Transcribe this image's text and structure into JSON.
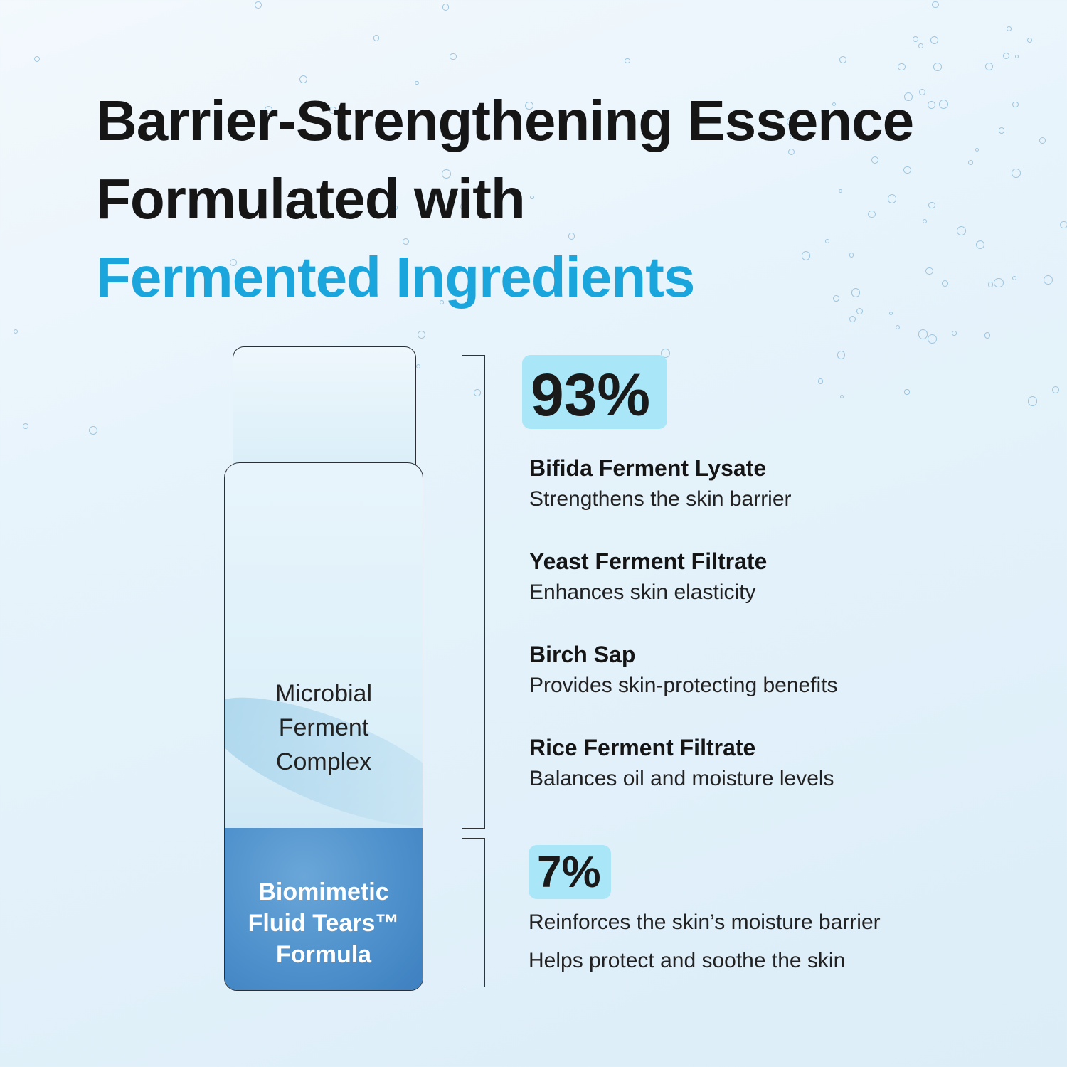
{
  "headline": {
    "line1": "Barrier-Strengthening Essence",
    "line2": "Formulated with",
    "line3": "Fermented Ingredients"
  },
  "accent_color": "#1aa6dc",
  "badge_color": "#a9e6f8",
  "bottle": {
    "upper_label": "Microbial Ferment Complex",
    "lower_label": "Biomimetic Fluid Tears™ Formula",
    "upper_share_percent": 93,
    "lower_share_percent": 7
  },
  "section_main": {
    "percent": "93%",
    "ingredients": [
      {
        "name": "Bifida Ferment Lysate",
        "desc": "Strengthens the skin barrier"
      },
      {
        "name": "Yeast Ferment Filtrate",
        "desc": "Enhances skin elasticity"
      },
      {
        "name": "Birch Sap",
        "desc": "Provides skin-protecting benefits"
      },
      {
        "name": "Rice Ferment Filtrate",
        "desc": "Balances oil and moisture levels"
      }
    ]
  },
  "section_minor": {
    "percent": "7%",
    "lines": [
      "Reinforces the skin’s moisture barrier",
      "Helps protect and soothe the skin"
    ]
  }
}
